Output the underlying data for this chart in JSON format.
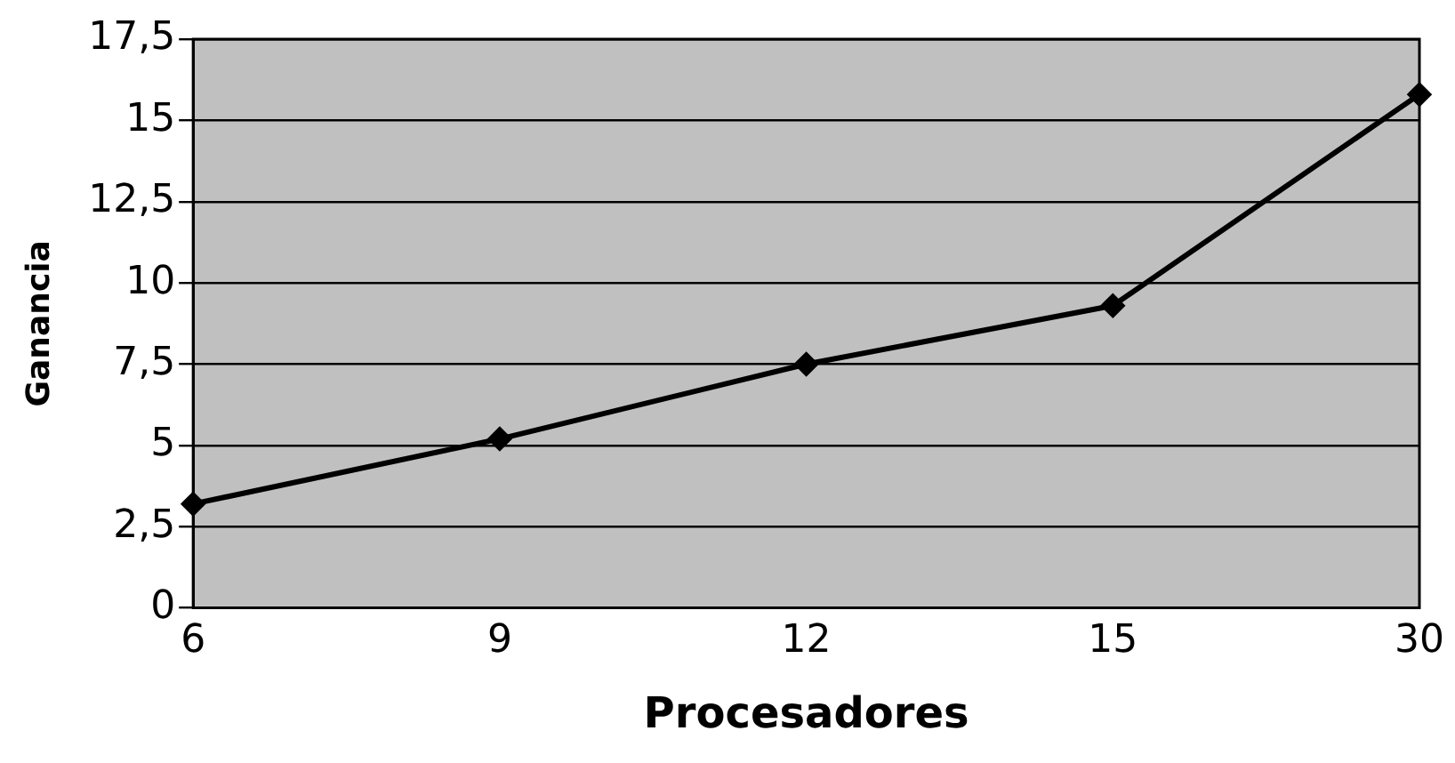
{
  "chart_data": {
    "type": "line",
    "xlabel": "Procesadores",
    "ylabel": "Ganancia",
    "categories": [
      "6",
      "9",
      "12",
      "15",
      "30"
    ],
    "series": [
      {
        "color": "#000000",
        "values": [
          3.2,
          5.2,
          7.5,
          9.3,
          15.8
        ]
      }
    ],
    "ylim": [
      0,
      17.5
    ],
    "yticks": [
      0,
      {
        "value": 2.5,
        "label": "2,5"
      },
      5,
      {
        "value": 7.5,
        "label": "7,5"
      },
      10,
      {
        "value": 12.5,
        "label": "12,5"
      },
      15,
      {
        "value": 17.5,
        "label": "17,5"
      }
    ],
    "grid": "y",
    "legend": false,
    "marker": "diamond",
    "line_style": "solid"
  }
}
